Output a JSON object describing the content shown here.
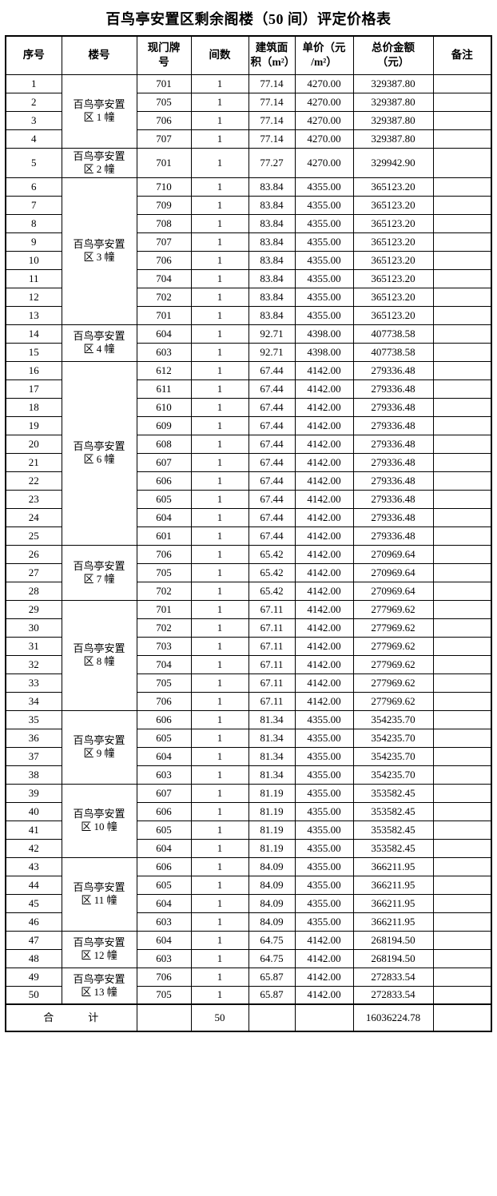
{
  "page_title": "百鸟亭安置区剩余阁楼（50 间）评定价格表",
  "table": {
    "headers": {
      "serial": "序号",
      "building": "楼号",
      "door": "现门牌\n号",
      "count": "间数",
      "area": "建筑面\n积（m²）",
      "unit_price": "单价（元\n/m²）",
      "total": "总价金额\n（元）",
      "note": "备注"
    },
    "groups": [
      {
        "building": "百鸟亭安置\n区 1 幢",
        "rows": [
          {
            "no": "1",
            "door": "701",
            "count": "1",
            "area": "77.14",
            "unit_price": "4270.00",
            "total": "329387.80",
            "note": ""
          },
          {
            "no": "2",
            "door": "705",
            "count": "1",
            "area": "77.14",
            "unit_price": "4270.00",
            "total": "329387.80",
            "note": ""
          },
          {
            "no": "3",
            "door": "706",
            "count": "1",
            "area": "77.14",
            "unit_price": "4270.00",
            "total": "329387.80",
            "note": ""
          },
          {
            "no": "4",
            "door": "707",
            "count": "1",
            "area": "77.14",
            "unit_price": "4270.00",
            "total": "329387.80",
            "note": ""
          }
        ]
      },
      {
        "building": "百鸟亭安置\n区 2 幢",
        "rows": [
          {
            "no": "5",
            "door": "701",
            "count": "1",
            "area": "77.27",
            "unit_price": "4270.00",
            "total": "329942.90",
            "note": ""
          }
        ]
      },
      {
        "building": "百鸟亭安置\n区 3 幢",
        "rows": [
          {
            "no": "6",
            "door": "710",
            "count": "1",
            "area": "83.84",
            "unit_price": "4355.00",
            "total": "365123.20",
            "note": ""
          },
          {
            "no": "7",
            "door": "709",
            "count": "1",
            "area": "83.84",
            "unit_price": "4355.00",
            "total": "365123.20",
            "note": ""
          },
          {
            "no": "8",
            "door": "708",
            "count": "1",
            "area": "83.84",
            "unit_price": "4355.00",
            "total": "365123.20",
            "note": ""
          },
          {
            "no": "9",
            "door": "707",
            "count": "1",
            "area": "83.84",
            "unit_price": "4355.00",
            "total": "365123.20",
            "note": ""
          },
          {
            "no": "10",
            "door": "706",
            "count": "1",
            "area": "83.84",
            "unit_price": "4355.00",
            "total": "365123.20",
            "note": ""
          },
          {
            "no": "11",
            "door": "704",
            "count": "1",
            "area": "83.84",
            "unit_price": "4355.00",
            "total": "365123.20",
            "note": ""
          },
          {
            "no": "12",
            "door": "702",
            "count": "1",
            "area": "83.84",
            "unit_price": "4355.00",
            "total": "365123.20",
            "note": ""
          },
          {
            "no": "13",
            "door": "701",
            "count": "1",
            "area": "83.84",
            "unit_price": "4355.00",
            "total": "365123.20",
            "note": ""
          }
        ]
      },
      {
        "building": "百鸟亭安置\n区 4 幢",
        "rows": [
          {
            "no": "14",
            "door": "604",
            "count": "1",
            "area": "92.71",
            "unit_price": "4398.00",
            "total": "407738.58",
            "note": ""
          },
          {
            "no": "15",
            "door": "603",
            "count": "1",
            "area": "92.71",
            "unit_price": "4398.00",
            "total": "407738.58",
            "note": ""
          }
        ]
      },
      {
        "building": "百鸟亭安置\n区 6 幢",
        "rows": [
          {
            "no": "16",
            "door": "612",
            "count": "1",
            "area": "67.44",
            "unit_price": "4142.00",
            "total": "279336.48",
            "note": ""
          },
          {
            "no": "17",
            "door": "611",
            "count": "1",
            "area": "67.44",
            "unit_price": "4142.00",
            "total": "279336.48",
            "note": ""
          },
          {
            "no": "18",
            "door": "610",
            "count": "1",
            "area": "67.44",
            "unit_price": "4142.00",
            "total": "279336.48",
            "note": ""
          },
          {
            "no": "19",
            "door": "609",
            "count": "1",
            "area": "67.44",
            "unit_price": "4142.00",
            "total": "279336.48",
            "note": ""
          },
          {
            "no": "20",
            "door": "608",
            "count": "1",
            "area": "67.44",
            "unit_price": "4142.00",
            "total": "279336.48",
            "note": ""
          },
          {
            "no": "21",
            "door": "607",
            "count": "1",
            "area": "67.44",
            "unit_price": "4142.00",
            "total": "279336.48",
            "note": ""
          },
          {
            "no": "22",
            "door": "606",
            "count": "1",
            "area": "67.44",
            "unit_price": "4142.00",
            "total": "279336.48",
            "note": ""
          },
          {
            "no": "23",
            "door": "605",
            "count": "1",
            "area": "67.44",
            "unit_price": "4142.00",
            "total": "279336.48",
            "note": ""
          },
          {
            "no": "24",
            "door": "604",
            "count": "1",
            "area": "67.44",
            "unit_price": "4142.00",
            "total": "279336.48",
            "note": ""
          },
          {
            "no": "25",
            "door": "601",
            "count": "1",
            "area": "67.44",
            "unit_price": "4142.00",
            "total": "279336.48",
            "note": ""
          }
        ]
      },
      {
        "building": "百鸟亭安置\n区 7 幢",
        "rows": [
          {
            "no": "26",
            "door": "706",
            "count": "1",
            "area": "65.42",
            "unit_price": "4142.00",
            "total": "270969.64",
            "note": ""
          },
          {
            "no": "27",
            "door": "705",
            "count": "1",
            "area": "65.42",
            "unit_price": "4142.00",
            "total": "270969.64",
            "note": ""
          },
          {
            "no": "28",
            "door": "702",
            "count": "1",
            "area": "65.42",
            "unit_price": "4142.00",
            "total": "270969.64",
            "note": ""
          }
        ]
      },
      {
        "building": "百鸟亭安置\n区 8 幢",
        "rows": [
          {
            "no": "29",
            "door": "701",
            "count": "1",
            "area": "67.11",
            "unit_price": "4142.00",
            "total": "277969.62",
            "note": ""
          },
          {
            "no": "30",
            "door": "702",
            "count": "1",
            "area": "67.11",
            "unit_price": "4142.00",
            "total": "277969.62",
            "note": ""
          },
          {
            "no": "31",
            "door": "703",
            "count": "1",
            "area": "67.11",
            "unit_price": "4142.00",
            "total": "277969.62",
            "note": ""
          },
          {
            "no": "32",
            "door": "704",
            "count": "1",
            "area": "67.11",
            "unit_price": "4142.00",
            "total": "277969.62",
            "note": ""
          },
          {
            "no": "33",
            "door": "705",
            "count": "1",
            "area": "67.11",
            "unit_price": "4142.00",
            "total": "277969.62",
            "note": ""
          },
          {
            "no": "34",
            "door": "706",
            "count": "1",
            "area": "67.11",
            "unit_price": "4142.00",
            "total": "277969.62",
            "note": ""
          }
        ]
      },
      {
        "building": "百鸟亭安置\n区 9 幢",
        "rows": [
          {
            "no": "35",
            "door": "606",
            "count": "1",
            "area": "81.34",
            "unit_price": "4355.00",
            "total": "354235.70",
            "note": ""
          },
          {
            "no": "36",
            "door": "605",
            "count": "1",
            "area": "81.34",
            "unit_price": "4355.00",
            "total": "354235.70",
            "note": ""
          },
          {
            "no": "37",
            "door": "604",
            "count": "1",
            "area": "81.34",
            "unit_price": "4355.00",
            "total": "354235.70",
            "note": ""
          },
          {
            "no": "38",
            "door": "603",
            "count": "1",
            "area": "81.34",
            "unit_price": "4355.00",
            "total": "354235.70",
            "note": ""
          }
        ]
      },
      {
        "building": "百鸟亭安置\n区 10 幢",
        "rows": [
          {
            "no": "39",
            "door": "607",
            "count": "1",
            "area": "81.19",
            "unit_price": "4355.00",
            "total": "353582.45",
            "note": ""
          },
          {
            "no": "40",
            "door": "606",
            "count": "1",
            "area": "81.19",
            "unit_price": "4355.00",
            "total": "353582.45",
            "note": ""
          },
          {
            "no": "41",
            "door": "605",
            "count": "1",
            "area": "81.19",
            "unit_price": "4355.00",
            "total": "353582.45",
            "note": ""
          },
          {
            "no": "42",
            "door": "604",
            "count": "1",
            "area": "81.19",
            "unit_price": "4355.00",
            "total": "353582.45",
            "note": ""
          }
        ]
      },
      {
        "building": "百鸟亭安置\n区 11 幢",
        "rows": [
          {
            "no": "43",
            "door": "606",
            "count": "1",
            "area": "84.09",
            "unit_price": "4355.00",
            "total": "366211.95",
            "note": ""
          },
          {
            "no": "44",
            "door": "605",
            "count": "1",
            "area": "84.09",
            "unit_price": "4355.00",
            "total": "366211.95",
            "note": ""
          },
          {
            "no": "45",
            "door": "604",
            "count": "1",
            "area": "84.09",
            "unit_price": "4355.00",
            "total": "366211.95",
            "note": ""
          },
          {
            "no": "46",
            "door": "603",
            "count": "1",
            "area": "84.09",
            "unit_price": "4355.00",
            "total": "366211.95",
            "note": ""
          }
        ]
      },
      {
        "building": "百鸟亭安置\n区 12 幢",
        "rows": [
          {
            "no": "47",
            "door": "604",
            "count": "1",
            "area": "64.75",
            "unit_price": "4142.00",
            "total": "268194.50",
            "note": ""
          },
          {
            "no": "48",
            "door": "603",
            "count": "1",
            "area": "64.75",
            "unit_price": "4142.00",
            "total": "268194.50",
            "note": ""
          }
        ]
      },
      {
        "building": "百鸟亭安置\n区 13 幢",
        "rows": [
          {
            "no": "49",
            "door": "706",
            "count": "1",
            "area": "65.87",
            "unit_price": "4142.00",
            "total": "272833.54",
            "note": ""
          },
          {
            "no": "50",
            "door": "705",
            "count": "1",
            "area": "65.87",
            "unit_price": "4142.00",
            "total": "272833.54",
            "note": ""
          }
        ]
      }
    ],
    "total_row": {
      "label": "合　　　计",
      "door": "",
      "count": "50",
      "area": "",
      "unit_price": "",
      "total_amount": "16036224.78",
      "note": ""
    }
  }
}
